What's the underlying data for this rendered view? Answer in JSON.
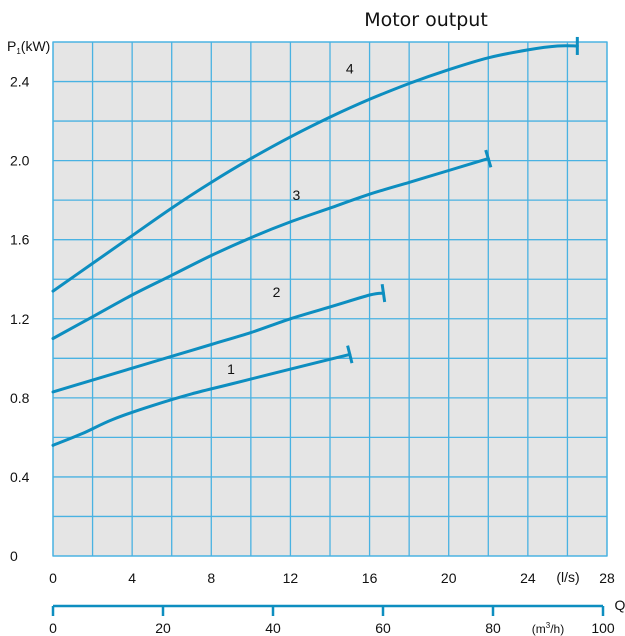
{
  "chart_data": {
    "type": "line",
    "title": "Motor output",
    "ylabel": "P",
    "ylabel_sub": "1",
    "ylabel_unit": "(kW)",
    "xlabel": "Q",
    "x_unit_ls": "(l/s)",
    "x_unit_m3h_prefix": "(m",
    "x_unit_m3h_sup": "3",
    "x_unit_m3h_suffix": "/h)",
    "xlim": [
      0,
      28
    ],
    "ylim": [
      0,
      2.6
    ],
    "grid": true,
    "y_ticks": [
      "0",
      "0.4",
      "0.8",
      "1.2",
      "1.6",
      "2.0",
      "2.4"
    ],
    "x_ticks_ls": [
      "0",
      "4",
      "8",
      "12",
      "16",
      "20",
      "24",
      "28"
    ],
    "x_ticks_m3h": [
      "0",
      "20",
      "40",
      "60",
      "80",
      "100"
    ],
    "colors": {
      "curve": "#0d8ec0",
      "grid": "#49b2e2",
      "plot_bg": "#e5e5e5",
      "axis": "#0d8ec0"
    },
    "series": [
      {
        "name": "1",
        "x": [
          0,
          1.5,
          3,
          5,
          7,
          9,
          11,
          13,
          15
        ],
        "y": [
          0.56,
          0.62,
          0.69,
          0.76,
          0.82,
          0.87,
          0.92,
          0.97,
          1.02
        ]
      },
      {
        "name": "2",
        "x": [
          0,
          2,
          4,
          6,
          8,
          10,
          12,
          14,
          16,
          16.7
        ],
        "y": [
          0.83,
          0.89,
          0.95,
          1.01,
          1.07,
          1.13,
          1.2,
          1.26,
          1.32,
          1.33
        ]
      },
      {
        "name": "3",
        "x": [
          0,
          2,
          4,
          6,
          8,
          10,
          12,
          14,
          16,
          18,
          20,
          22
        ],
        "y": [
          1.1,
          1.21,
          1.32,
          1.42,
          1.52,
          1.61,
          1.69,
          1.76,
          1.83,
          1.89,
          1.95,
          2.01
        ]
      },
      {
        "name": "4",
        "x": [
          0,
          2,
          4,
          6,
          8,
          10,
          12,
          14,
          16,
          18,
          20,
          22,
          24,
          25.5,
          26.5
        ],
        "y": [
          1.34,
          1.48,
          1.62,
          1.76,
          1.89,
          2.01,
          2.12,
          2.22,
          2.31,
          2.39,
          2.46,
          2.52,
          2.56,
          2.58,
          2.58
        ]
      }
    ],
    "curve_labels": [
      {
        "text": "1",
        "x": 9,
        "y": 0.92
      },
      {
        "text": "2",
        "x": 11.3,
        "y": 1.31
      },
      {
        "text": "3",
        "x": 12.3,
        "y": 1.8
      },
      {
        "text": "4",
        "x": 15,
        "y": 2.44
      }
    ]
  }
}
